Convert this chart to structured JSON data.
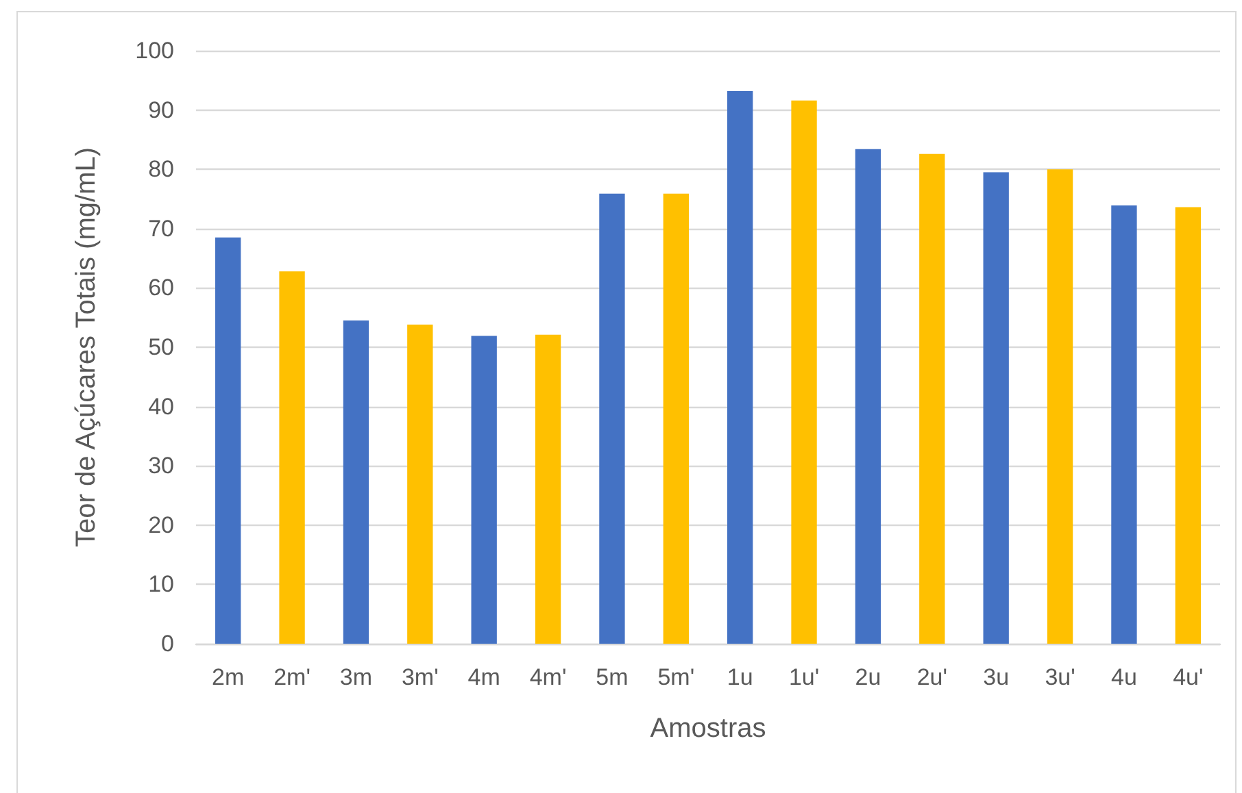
{
  "chart_data": {
    "type": "bar",
    "xlabel": "Amostras",
    "ylabel": "Teor de Açúcares Totais (mg/mL)",
    "categories": [
      "2m",
      "2m'",
      "3m",
      "3m'",
      "4m",
      "4m'",
      "5m",
      "5m'",
      "1u",
      "1u'",
      "2u",
      "2u'",
      "3u",
      "3u'",
      "4u",
      "4u'"
    ],
    "values": [
      68.5,
      62.8,
      54.5,
      53.8,
      51.9,
      52.1,
      75.9,
      75.9,
      93.2,
      91.6,
      83.4,
      82.6,
      79.5,
      80,
      73.9,
      73.6
    ],
    "colors": [
      "#4472c4",
      "#ffc000",
      "#4472c4",
      "#ffc000",
      "#4472c4",
      "#ffc000",
      "#4472c4",
      "#ffc000",
      "#4472c4",
      "#ffc000",
      "#4472c4",
      "#ffc000",
      "#4472c4",
      "#ffc000",
      "#4472c4",
      "#ffc000"
    ],
    "ylim": [
      0,
      100
    ],
    "yticks": [
      0,
      10,
      20,
      30,
      40,
      50,
      60,
      70,
      80,
      90,
      100
    ],
    "grid": true
  }
}
